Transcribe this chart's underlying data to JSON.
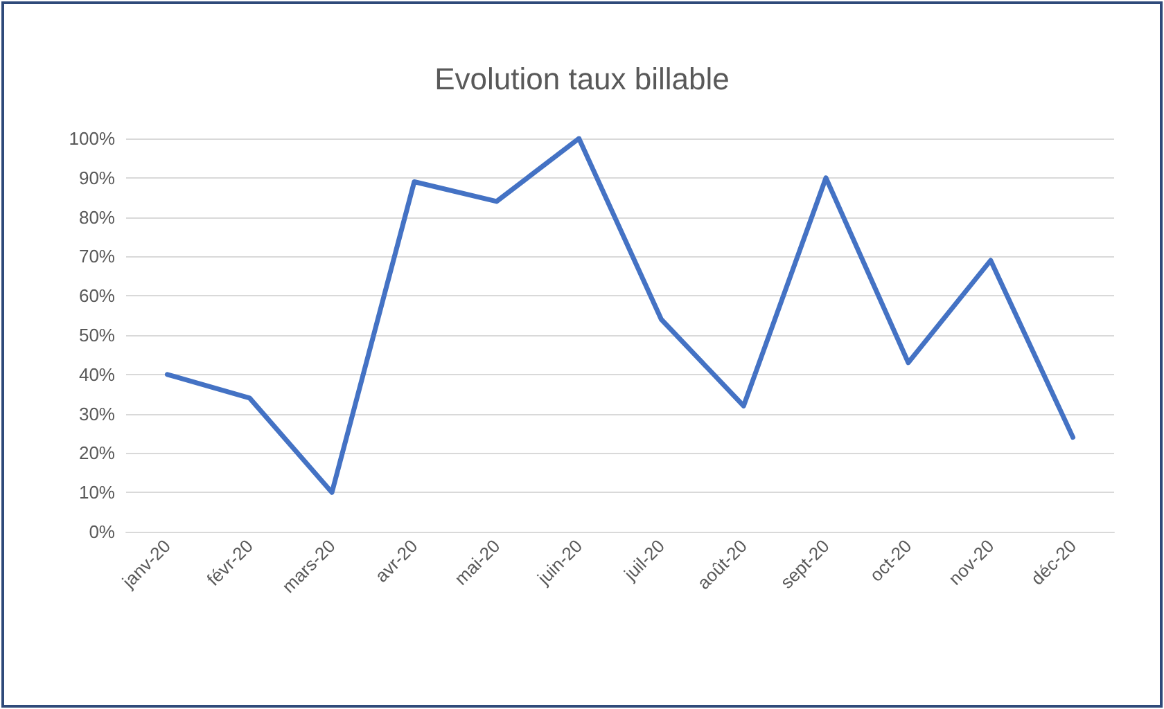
{
  "chart_data": {
    "type": "line",
    "title": "Evolution taux billable",
    "categories": [
      "janv-20",
      "févr-20",
      "mars-20",
      "avr-20",
      "mai-20",
      "juin-20",
      "juil-20",
      "août-20",
      "sept-20",
      "oct-20",
      "nov-20",
      "déc-20"
    ],
    "series": [
      {
        "color": "#4472c4",
        "values": [
          40,
          34,
          10,
          89,
          84,
          100,
          54,
          32,
          90,
          43,
          69,
          24
        ]
      }
    ],
    "ylim": [
      0,
      100
    ],
    "yticks": [
      {
        "value": 0,
        "label": "0%"
      },
      {
        "value": 10,
        "label": "10%"
      },
      {
        "value": 20,
        "label": "20%"
      },
      {
        "value": 30,
        "label": "30%"
      },
      {
        "value": 40,
        "label": "40%"
      },
      {
        "value": 50,
        "label": "50%"
      },
      {
        "value": 60,
        "label": "60%"
      },
      {
        "value": 70,
        "label": "70%"
      },
      {
        "value": 80,
        "label": "80%"
      },
      {
        "value": 90,
        "label": "90%"
      },
      {
        "value": 100,
        "label": "100%"
      }
    ],
    "grid": "y",
    "marker": "none",
    "line_style": "solid"
  }
}
